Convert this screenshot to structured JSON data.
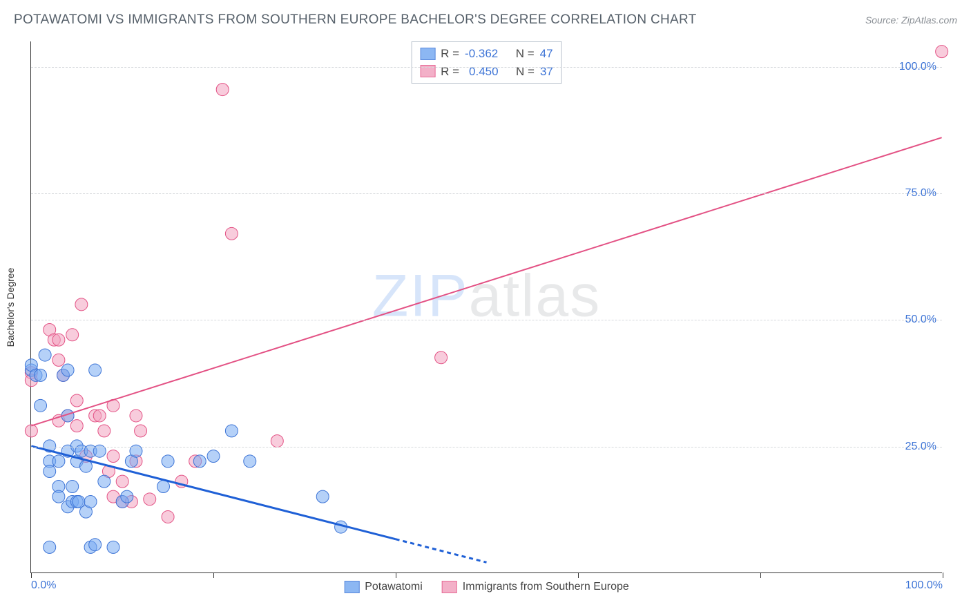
{
  "title": "POTAWATOMI VS IMMIGRANTS FROM SOUTHERN EUROPE BACHELOR'S DEGREE CORRELATION CHART",
  "source_label": "Source: ",
  "source_name": "ZipAtlas.com",
  "y_axis_label": "Bachelor's Degree",
  "watermark_a": "ZIP",
  "watermark_b": "atlas",
  "chart": {
    "type": "scatter",
    "xlim": [
      0,
      100
    ],
    "ylim": [
      0,
      105
    ],
    "y_ticks": [
      25,
      50,
      75,
      100
    ],
    "y_tick_labels": [
      "25.0%",
      "50.0%",
      "75.0%",
      "100.0%"
    ],
    "x_tick_positions": [
      0,
      20,
      40,
      60,
      80,
      100
    ],
    "x_end_labels": [
      "0.0%",
      "100.0%"
    ],
    "background": "#ffffff",
    "grid_color": "#d5d8db",
    "axis_color": "#333333",
    "tick_label_color": "#3d74d6",
    "series_a": {
      "name": "Potawatomi",
      "fill": "#79abf2",
      "fill_opacity": 0.55,
      "stroke": "#3d74d6",
      "r": 9,
      "R_label": "R =",
      "R_value": "-0.362",
      "N_label": "N =",
      "N_value": "47",
      "trend": {
        "x1": 0,
        "y1": 25,
        "x2": 50,
        "y2": 2,
        "solid_until_x": 40,
        "color": "#1f60d6",
        "width": 3
      },
      "points": [
        [
          0,
          40
        ],
        [
          0,
          41
        ],
        [
          0.5,
          39
        ],
        [
          1,
          39
        ],
        [
          1,
          33
        ],
        [
          1.5,
          43
        ],
        [
          2,
          22
        ],
        [
          2,
          25
        ],
        [
          2,
          20
        ],
        [
          2,
          5
        ],
        [
          3,
          22
        ],
        [
          3,
          17
        ],
        [
          3,
          15
        ],
        [
          3.5,
          39
        ],
        [
          4,
          31
        ],
        [
          4,
          24
        ],
        [
          4,
          40
        ],
        [
          4,
          13
        ],
        [
          4.5,
          14
        ],
        [
          4.5,
          17
        ],
        [
          5,
          14
        ],
        [
          5,
          25
        ],
        [
          5,
          22
        ],
        [
          5.2,
          14
        ],
        [
          5.5,
          24
        ],
        [
          6,
          12
        ],
        [
          6,
          21
        ],
        [
          6.5,
          24
        ],
        [
          6.5,
          5
        ],
        [
          6.5,
          14
        ],
        [
          7,
          5.5
        ],
        [
          7,
          40
        ],
        [
          7.5,
          24
        ],
        [
          8,
          18
        ],
        [
          9,
          5
        ],
        [
          10,
          14
        ],
        [
          10.5,
          15
        ],
        [
          11,
          22
        ],
        [
          11.5,
          24
        ],
        [
          14.5,
          17
        ],
        [
          15,
          22
        ],
        [
          18.5,
          22
        ],
        [
          20,
          23
        ],
        [
          22,
          28
        ],
        [
          24,
          22
        ],
        [
          32,
          15
        ],
        [
          34,
          9
        ]
      ]
    },
    "series_b": {
      "name": "Immigrants from Southern Europe",
      "fill": "#f2a3bf",
      "fill_opacity": 0.55,
      "stroke": "#e35184",
      "r": 9,
      "R_label": "R =",
      "R_value": "0.450",
      "N_label": "N =",
      "N_value": "37",
      "trend": {
        "x1": 0,
        "y1": 29,
        "x2": 100,
        "y2": 86,
        "color": "#e35184",
        "width": 2
      },
      "points": [
        [
          0,
          39.5
        ],
        [
          0,
          38
        ],
        [
          0,
          28
        ],
        [
          2,
          48
        ],
        [
          2.5,
          46
        ],
        [
          3,
          42
        ],
        [
          3,
          46
        ],
        [
          3,
          30
        ],
        [
          3.5,
          39
        ],
        [
          4,
          31
        ],
        [
          4.5,
          47
        ],
        [
          5,
          34
        ],
        [
          5,
          29
        ],
        [
          5.5,
          53
        ],
        [
          6,
          23
        ],
        [
          7,
          31
        ],
        [
          7.5,
          31
        ],
        [
          8,
          28
        ],
        [
          8.5,
          20
        ],
        [
          9,
          15
        ],
        [
          9,
          23
        ],
        [
          9,
          33
        ],
        [
          10,
          18
        ],
        [
          10,
          14
        ],
        [
          11,
          14
        ],
        [
          11.5,
          22
        ],
        [
          11.5,
          31
        ],
        [
          12,
          28
        ],
        [
          13,
          14.5
        ],
        [
          15,
          11
        ],
        [
          16.5,
          18
        ],
        [
          18,
          22
        ],
        [
          21,
          95.5
        ],
        [
          22,
          67
        ],
        [
          27,
          26
        ],
        [
          45,
          42.5
        ],
        [
          100,
          103
        ]
      ]
    }
  },
  "legend_bottom": {
    "a": "Potawatomi",
    "b": "Immigrants from Southern Europe"
  }
}
